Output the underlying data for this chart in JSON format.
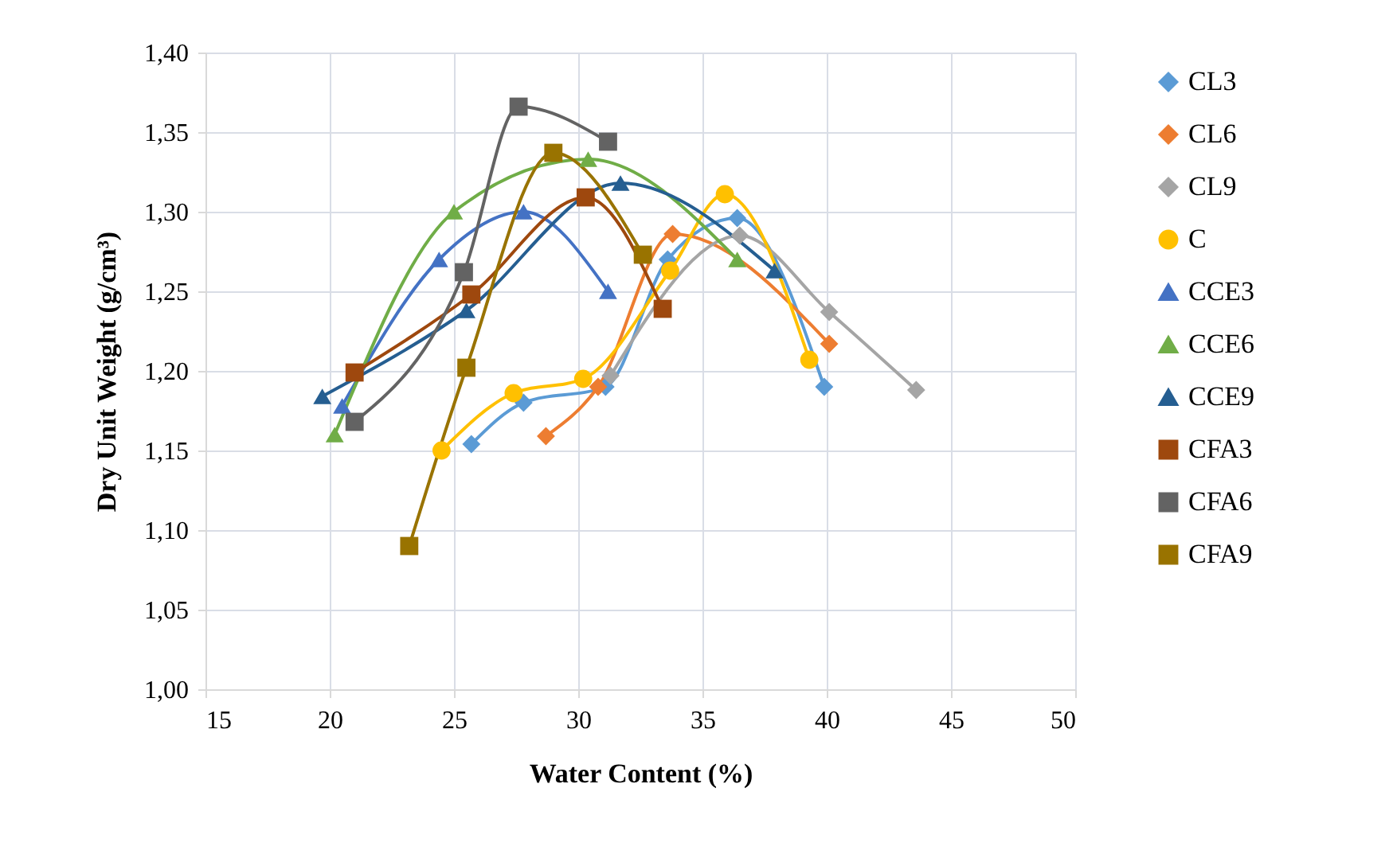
{
  "chart_data": {
    "type": "line",
    "xlabel": "Water Content (%)",
    "ylabel": "Dry Unit Weight (g/cm³)",
    "xlim": [
      15,
      50
    ],
    "xticks": [
      15,
      20,
      25,
      30,
      35,
      40,
      45,
      50
    ],
    "ylim": [
      1.0,
      1.4
    ],
    "yticks": [
      {
        "value": 1.0,
        "label": "1,00"
      },
      {
        "value": 1.05,
        "label": "1,05"
      },
      {
        "value": 1.1,
        "label": "1,10"
      },
      {
        "value": 1.15,
        "label": "1,15"
      },
      {
        "value": 1.2,
        "label": "1,20"
      },
      {
        "value": 1.25,
        "label": "1,25"
      },
      {
        "value": 1.3,
        "label": "1,30"
      },
      {
        "value": 1.35,
        "label": "1,35"
      },
      {
        "value": 1.4,
        "label": "1,40"
      }
    ],
    "grid": true,
    "legend": "right",
    "series": [
      {
        "name": "CL3",
        "color": "#5b9bd5",
        "marker": "diamond",
        "x": [
          25.7,
          27.8,
          31.1,
          33.6,
          36.4,
          39.9
        ],
        "values": [
          1.154,
          1.18,
          1.19,
          1.27,
          1.296,
          1.19
        ]
      },
      {
        "name": "CL6",
        "color": "#ed7d31",
        "marker": "diamond",
        "x": [
          28.7,
          30.8,
          33.8,
          40.1
        ],
        "values": [
          1.159,
          1.19,
          1.286,
          1.217
        ]
      },
      {
        "name": "CL9",
        "color": "#a5a5a5",
        "marker": "diamond",
        "x": [
          31.3,
          36.5,
          40.1,
          43.6
        ],
        "values": [
          1.197,
          1.285,
          1.237,
          1.188
        ]
      },
      {
        "name": "C",
        "color": "#ffc000",
        "marker": "circle",
        "x": [
          24.5,
          27.4,
          30.2,
          33.7,
          35.9,
          39.3
        ],
        "values": [
          1.15,
          1.186,
          1.195,
          1.263,
          1.311,
          1.207
        ]
      },
      {
        "name": "CCE3",
        "color": "#4472c4",
        "marker": "triangle",
        "x": [
          20.5,
          24.4,
          27.8,
          31.2
        ],
        "values": [
          1.178,
          1.27,
          1.3,
          1.25
        ]
      },
      {
        "name": "CCE6",
        "color": "#70ad47",
        "marker": "triangle",
        "x": [
          20.2,
          25.0,
          30.4,
          36.4
        ],
        "values": [
          1.16,
          1.3,
          1.333,
          1.27
        ]
      },
      {
        "name": "CCE9",
        "color": "#255e91",
        "marker": "triangle",
        "x": [
          19.7,
          25.5,
          31.7,
          37.9
        ],
        "values": [
          1.184,
          1.238,
          1.318,
          1.263
        ]
      },
      {
        "name": "CFA3",
        "color": "#9e480e",
        "marker": "square",
        "x": [
          21.0,
          25.7,
          30.3,
          33.4
        ],
        "values": [
          1.199,
          1.248,
          1.309,
          1.239
        ]
      },
      {
        "name": "CFA6",
        "color": "#636363",
        "marker": "square",
        "x": [
          21.0,
          25.4,
          27.6,
          31.2
        ],
        "values": [
          1.168,
          1.262,
          1.366,
          1.344
        ]
      },
      {
        "name": "CFA9",
        "color": "#997300",
        "marker": "square",
        "x": [
          23.2,
          25.5,
          29.0,
          32.6
        ],
        "values": [
          1.09,
          1.202,
          1.337,
          1.273
        ]
      }
    ]
  }
}
